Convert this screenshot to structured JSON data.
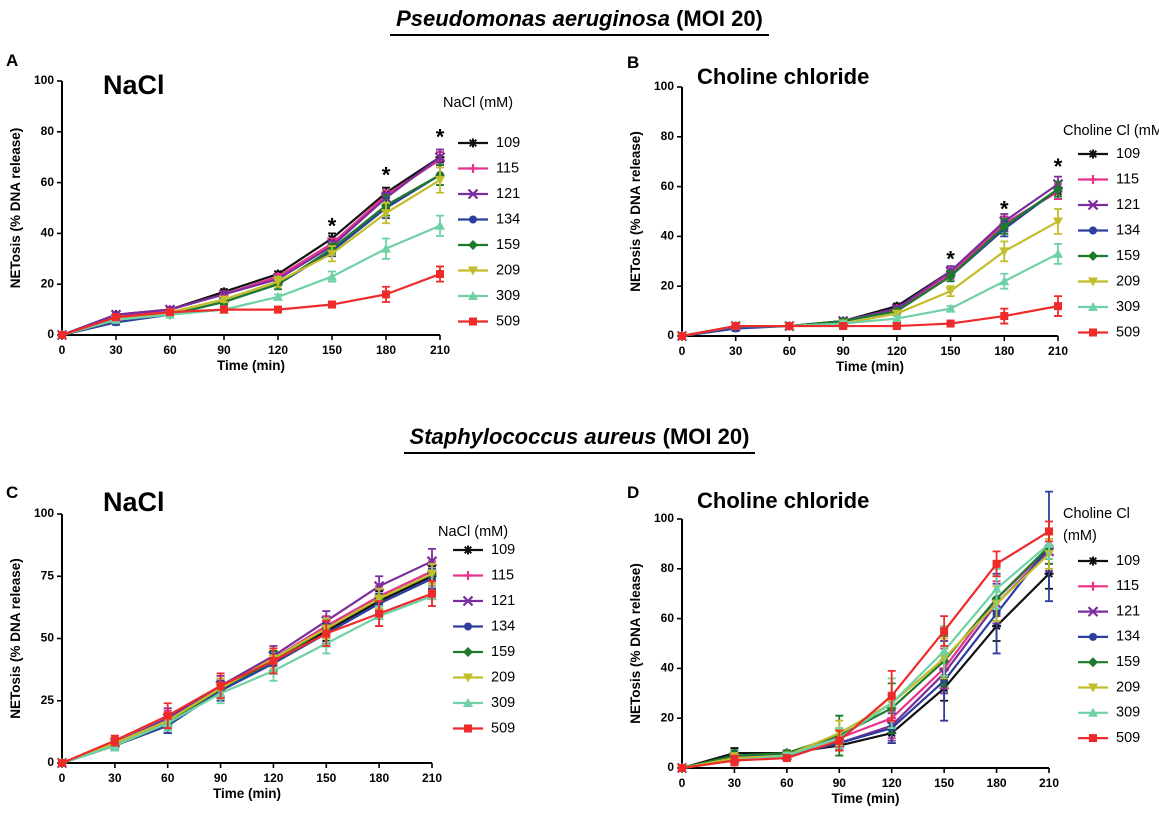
{
  "sections": {
    "top": {
      "organism": "Pseudomonas aeruginosa",
      "moi": "(MOI 20)"
    },
    "bottom": {
      "organism": "Staphylococcus aureus",
      "moi": "(MOI 20)"
    }
  },
  "colors": {
    "109": "#111111",
    "115": "#e8328c",
    "121": "#7b2d9e",
    "134": "#2c3e9e",
    "159": "#1d7a2a",
    "209": "#c2bd2a",
    "309": "#6fd1a6",
    "509": "#ee2a2a"
  },
  "chart_data": [
    {
      "id": "A",
      "panel_label": "A",
      "type": "line",
      "title": "NaCl",
      "xlabel": "Time (min)",
      "ylabel": "NETosis (% DNA release)",
      "x": [
        0,
        30,
        60,
        90,
        120,
        150,
        180,
        210
      ],
      "xlim": [
        0,
        210
      ],
      "ylim": [
        0,
        100
      ],
      "yticks": [
        0,
        20,
        40,
        60,
        80,
        100
      ],
      "legend_title": "NaCl (mM)",
      "legend_title_lines": [
        "NaCl (mM)"
      ],
      "annotations": [
        {
          "text": "*",
          "x": 150,
          "y": 40
        },
        {
          "text": "*",
          "x": 180,
          "y": 60
        },
        {
          "text": "*",
          "x": 210,
          "y": 75
        }
      ],
      "series": [
        {
          "name": "109",
          "marker": "star",
          "values": [
            0,
            8,
            10,
            17,
            24,
            38,
            56,
            70
          ],
          "errors": [
            0,
            1,
            1,
            1,
            1,
            2,
            2,
            2
          ]
        },
        {
          "name": "115",
          "marker": "plus",
          "values": [
            0,
            7,
            10,
            16,
            23,
            36,
            55,
            69
          ],
          "errors": [
            0,
            1,
            1,
            1,
            1,
            2,
            2,
            3
          ]
        },
        {
          "name": "121",
          "marker": "cross",
          "values": [
            0,
            8,
            10,
            16,
            22,
            35,
            54,
            70
          ],
          "errors": [
            0,
            1,
            1,
            1,
            1,
            2,
            2,
            3
          ]
        },
        {
          "name": "134",
          "marker": "circle",
          "values": [
            0,
            5,
            8,
            13,
            20,
            33,
            50,
            63
          ],
          "errors": [
            0,
            1,
            1,
            1,
            2,
            2,
            4,
            4
          ]
        },
        {
          "name": "159",
          "marker": "diamond",
          "values": [
            0,
            6,
            8,
            13,
            20,
            34,
            51,
            63
          ],
          "errors": [
            0,
            1,
            1,
            1,
            2,
            2,
            4,
            4
          ]
        },
        {
          "name": "209",
          "marker": "tridown",
          "values": [
            0,
            6,
            9,
            14,
            21,
            32,
            48,
            61
          ],
          "errors": [
            0,
            1,
            1,
            1,
            2,
            3,
            4,
            5
          ]
        },
        {
          "name": "309",
          "marker": "triup",
          "values": [
            0,
            6,
            8,
            10,
            15,
            23,
            34,
            43
          ],
          "errors": [
            0,
            1,
            1,
            1,
            1,
            2,
            4,
            4
          ]
        },
        {
          "name": "509",
          "marker": "square",
          "values": [
            0,
            7,
            9,
            10,
            10,
            12,
            16,
            24
          ],
          "errors": [
            0,
            1,
            1,
            1,
            1,
            1,
            3,
            3
          ]
        }
      ]
    },
    {
      "id": "B",
      "panel_label": "B",
      "type": "line",
      "title": "Choline chloride",
      "xlabel": "Time (min)",
      "ylabel": "NETosis (% DNA release)",
      "x": [
        0,
        30,
        60,
        90,
        120,
        150,
        180,
        210
      ],
      "xlim": [
        0,
        210
      ],
      "ylim": [
        0,
        100
      ],
      "yticks": [
        0,
        20,
        40,
        60,
        80,
        100
      ],
      "legend_title": "Choline Cl (mM)",
      "legend_title_lines": [
        "Choline Cl (mM)"
      ],
      "annotations": [
        {
          "text": "*",
          "x": 150,
          "y": 28
        },
        {
          "text": "*",
          "x": 180,
          "y": 48
        },
        {
          "text": "*",
          "x": 210,
          "y": 65
        }
      ],
      "series": [
        {
          "name": "109",
          "marker": "star",
          "values": [
            0,
            4,
            4,
            6,
            12,
            26,
            45,
            58
          ],
          "errors": [
            0,
            1,
            1,
            1,
            1,
            2,
            3,
            3
          ]
        },
        {
          "name": "115",
          "marker": "plus",
          "values": [
            0,
            4,
            4,
            6,
            11,
            25,
            45,
            58
          ],
          "errors": [
            0,
            1,
            1,
            1,
            1,
            2,
            3,
            3
          ]
        },
        {
          "name": "121",
          "marker": "cross",
          "values": [
            0,
            4,
            4,
            6,
            11,
            26,
            46,
            61
          ],
          "errors": [
            0,
            1,
            1,
            1,
            1,
            2,
            3,
            3
          ]
        },
        {
          "name": "134",
          "marker": "circle",
          "values": [
            0,
            3,
            4,
            6,
            10,
            24,
            43,
            59
          ],
          "errors": [
            0,
            1,
            1,
            1,
            1,
            2,
            3,
            3
          ]
        },
        {
          "name": "159",
          "marker": "diamond",
          "values": [
            0,
            4,
            4,
            6,
            10,
            24,
            44,
            59
          ],
          "errors": [
            0,
            1,
            1,
            1,
            1,
            2,
            3,
            3
          ]
        },
        {
          "name": "209",
          "marker": "tridown",
          "values": [
            0,
            4,
            4,
            5,
            9,
            18,
            34,
            46
          ],
          "errors": [
            0,
            1,
            1,
            1,
            1,
            2,
            4,
            5
          ]
        },
        {
          "name": "309",
          "marker": "triup",
          "values": [
            0,
            4,
            4,
            5,
            7,
            11,
            22,
            33
          ],
          "errors": [
            0,
            1,
            1,
            1,
            1,
            1,
            3,
            4
          ]
        },
        {
          "name": "509",
          "marker": "square",
          "values": [
            0,
            4,
            4,
            4,
            4,
            5,
            8,
            12
          ],
          "errors": [
            0,
            1,
            1,
            1,
            1,
            1,
            3,
            4
          ]
        }
      ]
    },
    {
      "id": "C",
      "panel_label": "C",
      "type": "line",
      "title": "NaCl",
      "xlabel": "Time (min)",
      "ylabel": "NETosis (% DNA release)",
      "x": [
        0,
        30,
        60,
        90,
        120,
        150,
        180,
        210
      ],
      "xlim": [
        0,
        210
      ],
      "ylim": [
        0,
        100
      ],
      "yticks": [
        0,
        25,
        50,
        75,
        100
      ],
      "legend_title": "NaCl (mM)",
      "legend_title_lines": [
        "NaCl (mM)"
      ],
      "annotations": [],
      "series": [
        {
          "name": "109",
          "marker": "star",
          "values": [
            0,
            7,
            15,
            30,
            41,
            53,
            65,
            75
          ],
          "errors": [
            0,
            2,
            3,
            4,
            4,
            4,
            4,
            4
          ]
        },
        {
          "name": "115",
          "marker": "plus",
          "values": [
            0,
            8,
            17,
            30,
            42,
            55,
            67,
            77
          ],
          "errors": [
            0,
            2,
            4,
            4,
            4,
            4,
            4,
            4
          ]
        },
        {
          "name": "121",
          "marker": "cross",
          "values": [
            0,
            8,
            18,
            31,
            43,
            57,
            71,
            81
          ],
          "errors": [
            0,
            2,
            4,
            4,
            4,
            4,
            4,
            5
          ]
        },
        {
          "name": "134",
          "marker": "circle",
          "values": [
            0,
            7,
            15,
            29,
            40,
            52,
            64,
            74
          ],
          "errors": [
            0,
            2,
            3,
            4,
            4,
            4,
            4,
            4
          ]
        },
        {
          "name": "159",
          "marker": "diamond",
          "values": [
            0,
            7,
            16,
            30,
            41,
            54,
            66,
            76
          ],
          "errors": [
            0,
            2,
            3,
            4,
            4,
            4,
            4,
            4
          ]
        },
        {
          "name": "209",
          "marker": "tridown",
          "values": [
            0,
            8,
            17,
            30,
            42,
            54,
            66,
            76
          ],
          "errors": [
            0,
            2,
            3,
            4,
            4,
            4,
            4,
            4
          ]
        },
        {
          "name": "309",
          "marker": "triup",
          "values": [
            0,
            7,
            16,
            28,
            37,
            48,
            59,
            67
          ],
          "errors": [
            0,
            2,
            3,
            4,
            4,
            4,
            4,
            4
          ]
        },
        {
          "name": "509",
          "marker": "square",
          "values": [
            0,
            9,
            19,
            31,
            41,
            52,
            60,
            68
          ],
          "errors": [
            0,
            2,
            5,
            5,
            5,
            5,
            5,
            5
          ]
        }
      ]
    },
    {
      "id": "D",
      "panel_label": "D",
      "type": "line",
      "title": "Choline chloride",
      "xlabel": "Time (min)",
      "ylabel": "NETosis (% DNA release)",
      "x": [
        0,
        30,
        60,
        90,
        120,
        150,
        180,
        210
      ],
      "xlim": [
        0,
        210
      ],
      "ylim": [
        0,
        100
      ],
      "yticks": [
        0,
        20,
        40,
        60,
        80,
        100
      ],
      "legend_title": "Choline Cl (mM)",
      "legend_title_lines": [
        "Choline Cl",
        "(mM)"
      ],
      "annotations": [],
      "series": [
        {
          "name": "109",
          "marker": "star",
          "values": [
            0,
            6,
            6,
            9,
            14,
            32,
            57,
            78
          ],
          "errors": [
            0,
            2,
            1,
            2,
            4,
            5,
            6,
            6
          ]
        },
        {
          "name": "115",
          "marker": "plus",
          "values": [
            0,
            4,
            5,
            12,
            20,
            40,
            68,
            88
          ],
          "errors": [
            0,
            2,
            1,
            4,
            8,
            8,
            7,
            6
          ]
        },
        {
          "name": "121",
          "marker": "cross",
          "values": [
            0,
            4,
            5,
            10,
            17,
            38,
            66,
            87
          ],
          "errors": [
            0,
            2,
            1,
            3,
            6,
            8,
            8,
            8
          ]
        },
        {
          "name": "134",
          "marker": "circle",
          "values": [
            0,
            5,
            5,
            10,
            16,
            35,
            62,
            89
          ],
          "errors": [
            0,
            2,
            1,
            3,
            6,
            16,
            16,
            22
          ]
        },
        {
          "name": "159",
          "marker": "diamond",
          "values": [
            0,
            5,
            6,
            13,
            24,
            43,
            68,
            89
          ],
          "errors": [
            0,
            2,
            1,
            8,
            10,
            10,
            9,
            7
          ]
        },
        {
          "name": "209",
          "marker": "tridown",
          "values": [
            0,
            4,
            5,
            14,
            26,
            44,
            66,
            86
          ],
          "errors": [
            0,
            2,
            1,
            5,
            10,
            8,
            7,
            6
          ]
        },
        {
          "name": "309",
          "marker": "triup",
          "values": [
            0,
            3,
            5,
            12,
            26,
            47,
            72,
            90
          ],
          "errors": [
            0,
            2,
            1,
            4,
            10,
            10,
            8,
            6
          ]
        },
        {
          "name": "509",
          "marker": "square",
          "values": [
            0,
            3,
            4,
            11,
            29,
            55,
            82,
            95
          ],
          "errors": [
            0,
            2,
            1,
            4,
            10,
            6,
            5,
            4
          ]
        }
      ]
    }
  ]
}
